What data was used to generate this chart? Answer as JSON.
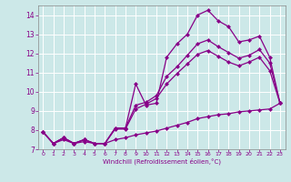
{
  "xlabel": "Windchill (Refroidissement éolien,°C)",
  "bg_color": "#cce8e8",
  "line_color": "#880088",
  "grid_color": "#aacccc",
  "xlim": [
    -0.5,
    23.5
  ],
  "ylim": [
    7.0,
    14.5
  ],
  "xticks": [
    0,
    1,
    2,
    3,
    4,
    5,
    6,
    7,
    8,
    9,
    10,
    11,
    12,
    13,
    14,
    15,
    16,
    17,
    18,
    19,
    20,
    21,
    22,
    23
  ],
  "yticks": [
    7,
    8,
    9,
    10,
    11,
    12,
    13,
    14
  ],
  "line1_x": [
    0,
    1,
    2,
    3,
    4,
    5,
    6,
    7,
    8,
    9,
    10,
    11,
    12,
    13,
    14,
    15,
    16,
    17,
    18,
    19,
    20,
    21,
    22,
    23
  ],
  "line1_y": [
    7.9,
    7.3,
    7.6,
    7.3,
    7.5,
    7.3,
    7.3,
    8.1,
    8.1,
    10.4,
    9.3,
    9.4,
    11.8,
    12.5,
    13.0,
    14.0,
    14.25,
    13.7,
    13.4,
    12.6,
    12.7,
    12.9,
    11.8,
    9.4
  ],
  "line2_x": [
    0,
    1,
    2,
    3,
    4,
    5,
    6,
    7,
    8,
    9,
    10,
    11,
    12,
    13,
    14,
    15,
    16,
    17,
    18,
    19,
    20,
    21,
    22,
    23
  ],
  "line2_y": [
    7.9,
    7.3,
    7.6,
    7.3,
    7.5,
    7.3,
    7.3,
    8.1,
    8.1,
    9.3,
    9.45,
    9.8,
    10.8,
    11.3,
    11.9,
    12.5,
    12.7,
    12.35,
    12.05,
    11.75,
    11.9,
    12.2,
    11.5,
    9.4
  ],
  "line3_x": [
    0,
    1,
    2,
    3,
    4,
    5,
    6,
    7,
    8,
    9,
    10,
    11,
    12,
    13,
    14,
    15,
    16,
    17,
    18,
    19,
    20,
    21,
    22,
    23
  ],
  "line3_y": [
    7.9,
    7.3,
    7.6,
    7.3,
    7.5,
    7.3,
    7.3,
    8.05,
    8.05,
    9.1,
    9.35,
    9.65,
    10.4,
    10.95,
    11.45,
    11.95,
    12.15,
    11.85,
    11.55,
    11.35,
    11.55,
    11.8,
    11.1,
    9.4
  ],
  "line4_x": [
    0,
    1,
    2,
    3,
    4,
    5,
    6,
    7,
    8,
    9,
    10,
    11,
    12,
    13,
    14,
    15,
    16,
    17,
    18,
    19,
    20,
    21,
    22,
    23
  ],
  "line4_y": [
    7.9,
    7.3,
    7.5,
    7.3,
    7.4,
    7.3,
    7.3,
    7.5,
    7.6,
    7.75,
    7.85,
    7.95,
    8.1,
    8.25,
    8.4,
    8.6,
    8.7,
    8.8,
    8.85,
    8.95,
    9.0,
    9.05,
    9.1,
    9.4
  ]
}
